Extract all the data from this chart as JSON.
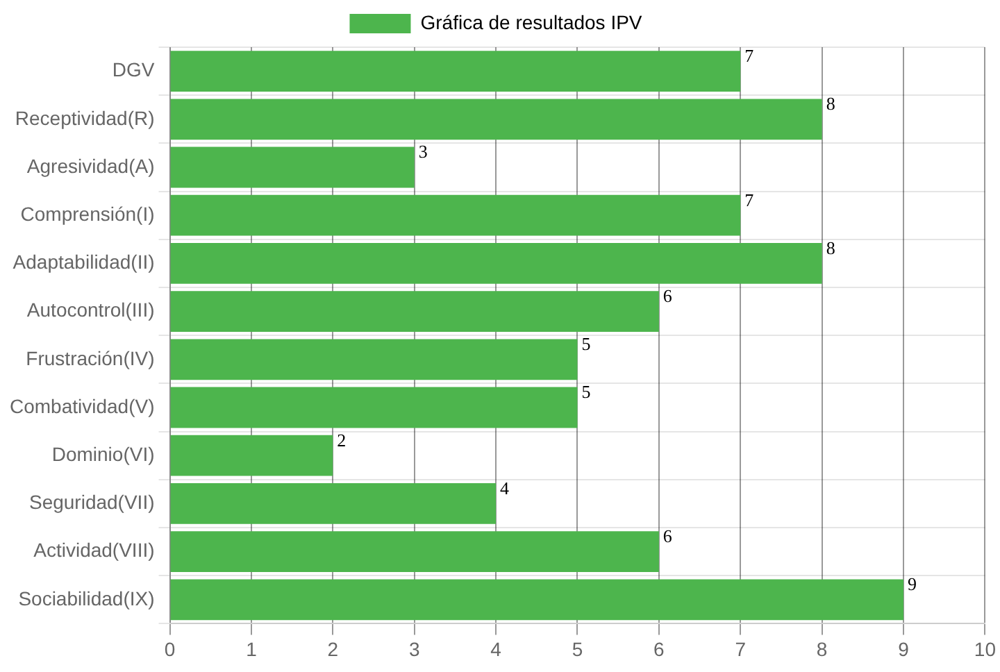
{
  "chart_data": {
    "type": "bar",
    "orientation": "horizontal",
    "categories": [
      "DGV",
      "Receptividad(R)",
      "Agresividad(A)",
      "Comprensión(I)",
      "Adaptabilidad(II)",
      "Autocontrol(III)",
      "Frustración(IV)",
      "Combatividad(V)",
      "Dominio(VI)",
      "Seguridad(VII)",
      "Actividad(VIII)",
      "Sociabilidad(IX)"
    ],
    "series": [
      {
        "name": "Gráfica de resultados IPV",
        "color": "#4db54d",
        "values": [
          7,
          8,
          3,
          7,
          8,
          6,
          5,
          5,
          2,
          4,
          6,
          9
        ]
      }
    ],
    "xlim": [
      0,
      10
    ],
    "xticks": [
      0,
      1,
      2,
      3,
      4,
      5,
      6,
      7,
      8,
      9,
      10
    ],
    "grid": true,
    "legend": "top",
    "data_labels": true
  }
}
